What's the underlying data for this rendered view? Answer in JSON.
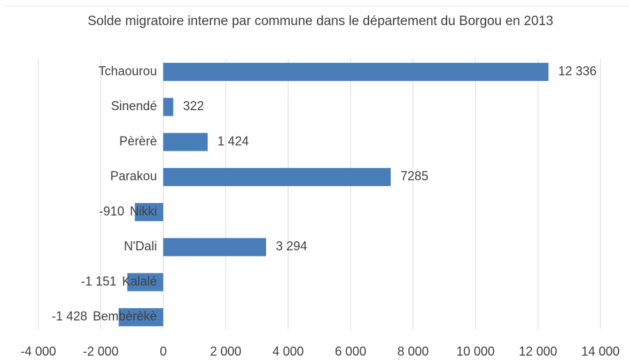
{
  "chart_data": {
    "type": "bar",
    "orientation": "horizontal",
    "title": "Solde migratoire interne par commune dans le département du Borgou en 2013",
    "categories": [
      "Tchaourou",
      "Sinendé",
      "Pèrèrè",
      "Parakou",
      "Nikki",
      "N'Dali",
      "Kalalé",
      "Bembèrèkè"
    ],
    "values": [
      12336,
      322,
      1424,
      7285,
      -910,
      3294,
      -1151,
      -1428
    ],
    "value_labels": [
      "12 336",
      "322",
      "1 424",
      "7285",
      "-910",
      "3 294",
      "-1 151",
      "-1 428"
    ],
    "color": "#4a7ebb",
    "xlim": [
      -4000,
      14000
    ],
    "xticks": [
      {
        "value": -4000,
        "label": "-4 000"
      },
      {
        "value": -2000,
        "label": "-2 000"
      },
      0,
      {
        "value": 2000,
        "label": "2 000"
      },
      {
        "value": 4000,
        "label": "4 000"
      },
      {
        "value": 6000,
        "label": "6 000"
      },
      {
        "value": 8000,
        "label": "8 000"
      },
      {
        "value": 10000,
        "label": "10 000"
      },
      {
        "value": 12000,
        "label": "12 000"
      },
      {
        "value": 14000,
        "label": "14 000"
      }
    ],
    "grid": true
  }
}
